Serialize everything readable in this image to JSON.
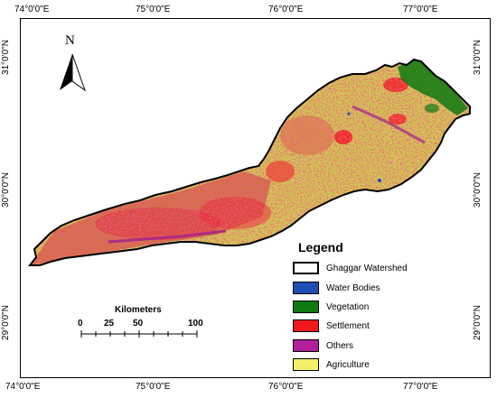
{
  "top_ticks": [
    "74°0'0\"E",
    "75°0'0\"E",
    "76°0'0\"E",
    "77°0'0\"E"
  ],
  "bottom_ticks": [
    "74°0'0\"E",
    "75°0'0\"E",
    "76°0'0\"E",
    "77°0'0\"E"
  ],
  "left_ticks": [
    "31°0'0\"N",
    "30°0'0\"N",
    "29°0'0\"N"
  ],
  "right_ticks": [
    "31°0'0\"N",
    "30°0'0\"N",
    "29°0'0\"N"
  ],
  "north_arrow": {
    "letter": "N",
    "icon": "north-arrow-icon"
  },
  "legend": {
    "title": "Legend",
    "items": [
      {
        "label": "Ghaggar Watershed",
        "color": "#ffffff"
      },
      {
        "label": "Water Bodies",
        "color": "#1f4fb4"
      },
      {
        "label": "Vegetation",
        "color": "#0f7a12"
      },
      {
        "label": "Settlement",
        "color": "#f01818"
      },
      {
        "label": "Others",
        "color": "#b0209a"
      },
      {
        "label": "Agriculture",
        "color": "#f4f06a"
      }
    ]
  },
  "scale_bar": {
    "title": "Kilometers",
    "labels": [
      "0",
      "25",
      "50",
      "100"
    ]
  }
}
